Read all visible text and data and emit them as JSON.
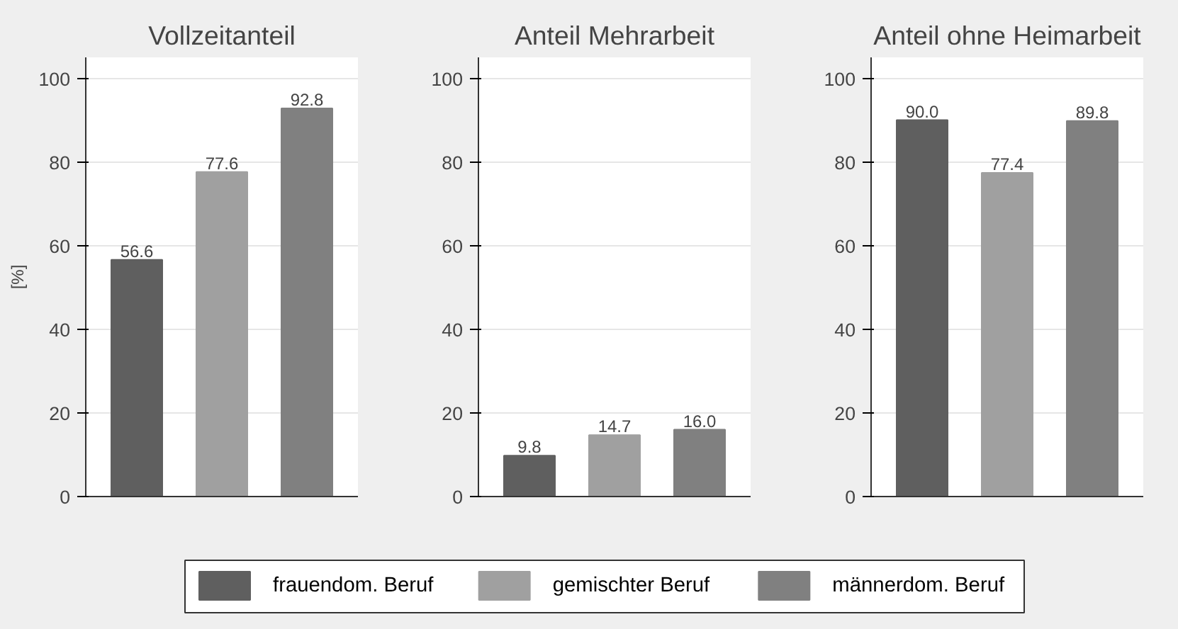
{
  "chart_data": [
    {
      "type": "bar",
      "title": "Vollzeitanteil",
      "ylabel": "[%]",
      "categories": [
        null
      ],
      "ylim": [
        0,
        105
      ],
      "yticks": [
        0,
        20,
        40,
        60,
        80,
        100
      ],
      "grid": "y",
      "legend": "bottom",
      "series": [
        {
          "name": "frauendom. Beruf",
          "color": "#5f5f5f",
          "values": [
            56.6
          ],
          "value_labels": [
            "56.6"
          ]
        },
        {
          "name": "gemischter Beruf",
          "color": "#a0a0a0",
          "values": [
            77.6
          ],
          "value_labels": [
            "77.6"
          ]
        },
        {
          "name": "männerdom. Beruf",
          "color": "#808080",
          "values": [
            92.8
          ],
          "value_labels": [
            "92.8"
          ]
        }
      ]
    },
    {
      "type": "bar",
      "title": "Anteil Mehrarbeit",
      "categories": [
        null
      ],
      "ylim": [
        0,
        105
      ],
      "yticks": [
        0,
        20,
        40,
        60,
        80,
        100
      ],
      "grid": "y",
      "series": [
        {
          "color": "#5f5f5f",
          "values": [
            9.8
          ],
          "value_labels": [
            "9.8"
          ]
        },
        {
          "color": "#a0a0a0",
          "values": [
            14.7
          ],
          "value_labels": [
            "14.7"
          ]
        },
        {
          "color": "#808080",
          "values": [
            16.0
          ],
          "value_labels": [
            "16.0"
          ]
        }
      ]
    },
    {
      "type": "bar",
      "title": "Anteil ohne Heimarbeit",
      "categories": [
        null
      ],
      "ylim": [
        0,
        105
      ],
      "yticks": [
        0,
        20,
        40,
        60,
        80,
        100
      ],
      "grid": "y",
      "series": [
        {
          "color": "#5f5f5f",
          "values": [
            90.0
          ],
          "value_labels": [
            "90.0"
          ]
        },
        {
          "color": "#a0a0a0",
          "values": [
            77.4
          ],
          "value_labels": [
            "77.4"
          ]
        },
        {
          "color": "#808080",
          "values": [
            89.8
          ],
          "value_labels": [
            "89.8"
          ]
        }
      ]
    }
  ]
}
